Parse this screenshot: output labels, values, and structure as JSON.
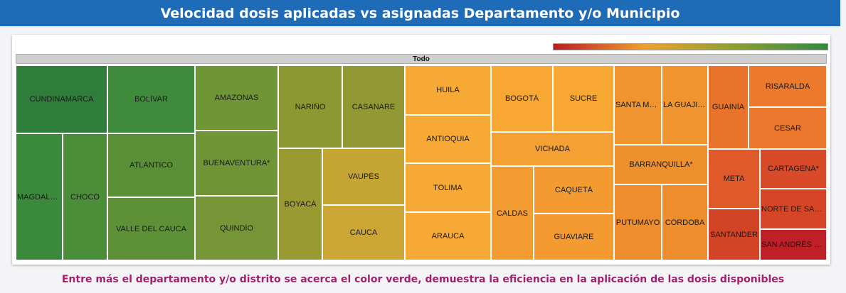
{
  "header": {
    "title": "Velocidad dosis aplicadas vs asignadas Departamento y/o Municipio"
  },
  "footer": {
    "note": "Entre más el departamento y/o distrito se acerca el color verde, demuestra la eficiencia en la aplicación de las dosis disponibles"
  },
  "colors": {
    "header_bg": "#1e6bb8",
    "footer_text": "#a3206a",
    "scale_low": "#b91d23",
    "scale_mid": "#f0a030",
    "scale_high": "#2e8a3e"
  },
  "chart_data": {
    "type": "treemap",
    "root_label": "Todo",
    "color_scale": "red-to-green (green = higher efficiency)",
    "nodes": [
      {
        "label": "CUNDINAMARCA",
        "color": "#2e7d3b"
      },
      {
        "label": "MAGDALE…",
        "color": "#3b8a3c"
      },
      {
        "label": "CHOCÓ",
        "color": "#4a8e3a"
      },
      {
        "label": "BOLÍVAR",
        "color": "#3e8b3b"
      },
      {
        "label": "ATLÁNTICO",
        "color": "#5a8f38"
      },
      {
        "label": "VALLE DEL CAUCA",
        "color": "#5e9037"
      },
      {
        "label": "AMAZONAS",
        "color": "#6f9535"
      },
      {
        "label": "BUENAVENTURA*",
        "color": "#6f9535"
      },
      {
        "label": "QUINDÍO",
        "color": "#769536"
      },
      {
        "label": "NARIÑO",
        "color": "#8c9832"
      },
      {
        "label": "CASANARE",
        "color": "#929833"
      },
      {
        "label": "BOYACÁ",
        "color": "#9a9a32"
      },
      {
        "label": "VAUPÉS",
        "color": "#c5a534"
      },
      {
        "label": "CAUCA",
        "color": "#cca634"
      },
      {
        "label": "HUILA",
        "color": "#f6a934"
      },
      {
        "label": "ANTIOQUIA",
        "color": "#f6a934"
      },
      {
        "label": "TOLIMA",
        "color": "#f6a934"
      },
      {
        "label": "ARAUCA",
        "color": "#f6a934"
      },
      {
        "label": "BOGOTÁ",
        "color": "#f7a732"
      },
      {
        "label": "SUCRE",
        "color": "#f7a732"
      },
      {
        "label": "VICHADA",
        "color": "#f5a032"
      },
      {
        "label": "CALDAS",
        "color": "#f39c31"
      },
      {
        "label": "CAQUETÁ",
        "color": "#f39a31"
      },
      {
        "label": "GUAVIARE",
        "color": "#f39a31"
      },
      {
        "label": "SANTA MA…",
        "color": "#f0942f"
      },
      {
        "label": "LA GUAJIRA",
        "color": "#f0942f"
      },
      {
        "label": "BARRANQUILLA*",
        "color": "#ef902f"
      },
      {
        "label": "PUTUMAYO",
        "color": "#ee8d2e"
      },
      {
        "label": "CÓRDOBA",
        "color": "#ee8d2e"
      },
      {
        "label": "GUAINÍA",
        "color": "#e8742c"
      },
      {
        "label": "RISARALDA",
        "color": "#eb7a2d"
      },
      {
        "label": "CESAR",
        "color": "#ea772c"
      },
      {
        "label": "META",
        "color": "#e0592a"
      },
      {
        "label": "CARTAGENA*",
        "color": "#d84a28"
      },
      {
        "label": "NORTE DE SAN…",
        "color": "#d64626"
      },
      {
        "label": "SANTANDER",
        "color": "#d34426"
      },
      {
        "label": "SAN ANDRÉS y…",
        "color": "#bf1f26"
      }
    ]
  }
}
